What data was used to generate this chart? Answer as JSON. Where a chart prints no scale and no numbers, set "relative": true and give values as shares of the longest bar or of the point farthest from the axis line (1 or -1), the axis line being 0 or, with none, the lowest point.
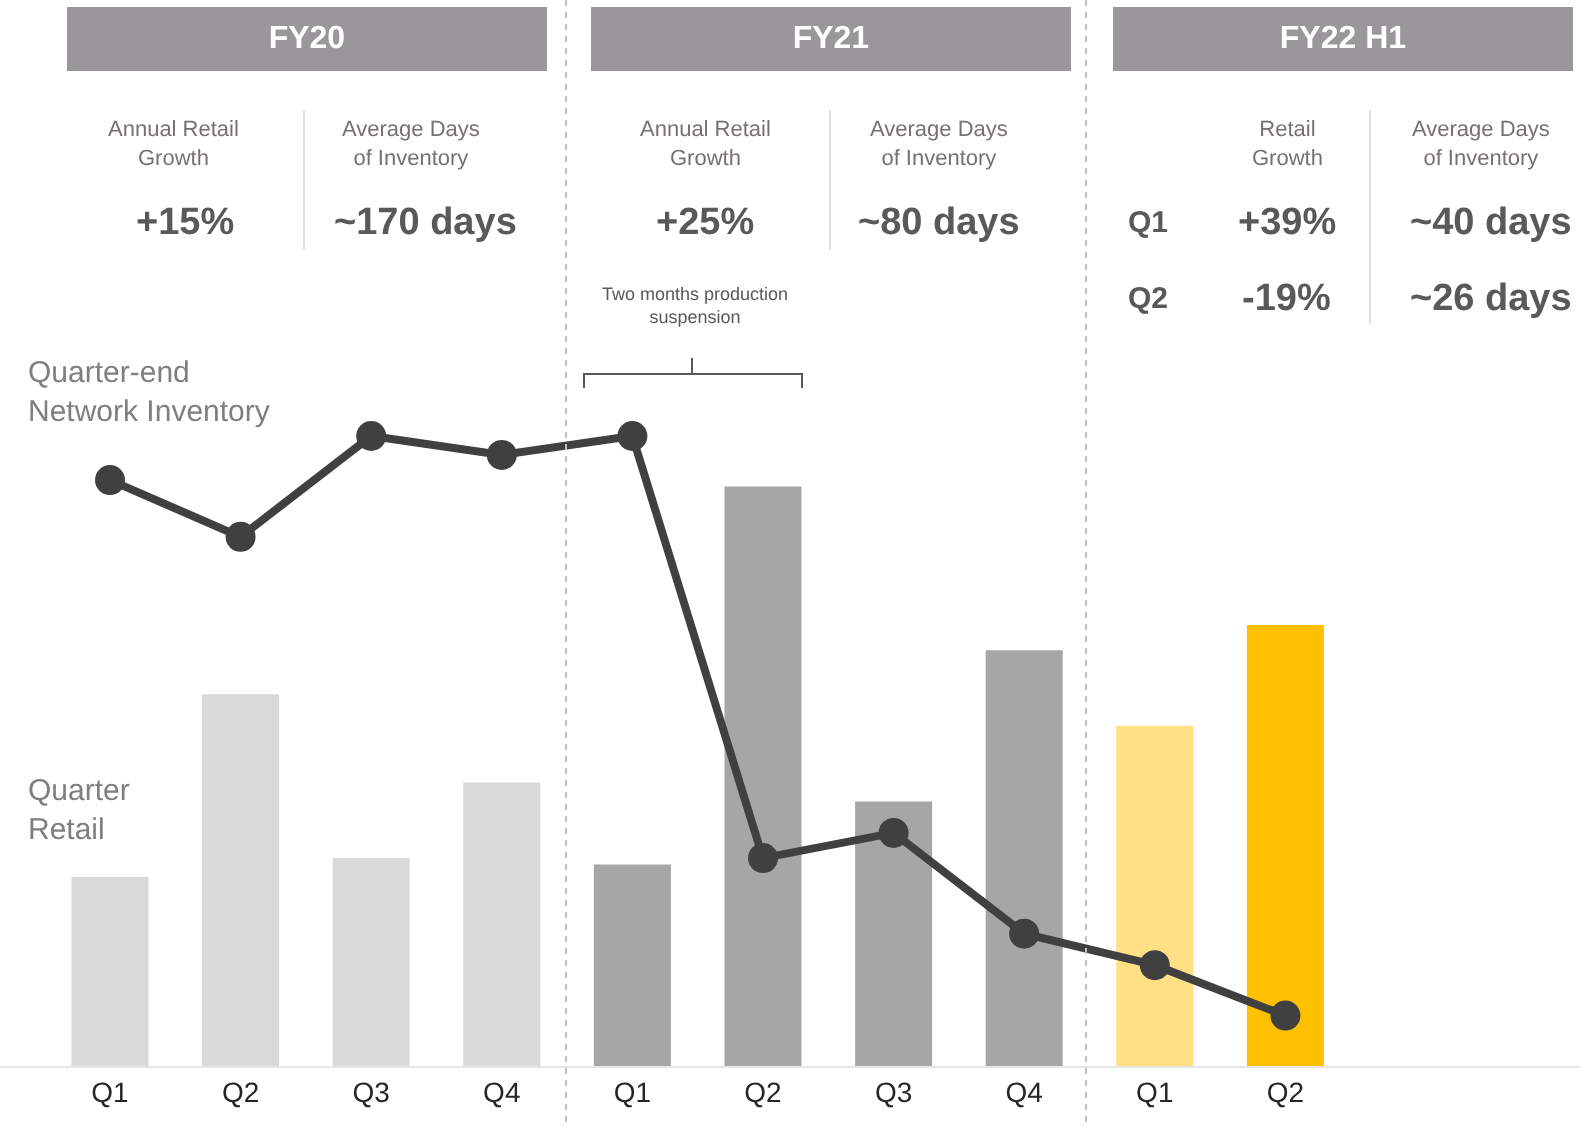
{
  "chart_data": {
    "type": "bar",
    "relative": true,
    "categories": [
      "Q1",
      "Q2",
      "Q3",
      "Q4",
      "Q1",
      "Q2",
      "Q3",
      "Q4",
      "Q1",
      "Q2"
    ],
    "series": [
      {
        "name": "Quarter\nRetail",
        "colors": [
          "#d9d9d9",
          "#d9d9d9",
          "#d9d9d9",
          "#d9d9d9",
          "#a6a6a6",
          "#a6a6a6",
          "#a6a6a6",
          "#a6a6a6",
          "#ffe084",
          "#ffc000"
        ],
        "values": [
          0.3,
          0.59,
          0.33,
          0.45,
          0.32,
          0.92,
          0.42,
          0.66,
          0.54,
          0.7
        ]
      },
      {
        "name": "Quarter-end\nNetwork Inventory",
        "type": "line",
        "color": "#404040",
        "values": [
          0.93,
          0.84,
          1.0,
          0.97,
          1.0,
          0.33,
          0.37,
          0.21,
          0.16,
          0.08
        ]
      }
    ],
    "marker": "circle",
    "line_style": "solid",
    "legend": false,
    "annotations": [
      "FY20",
      "FY21",
      "FY22 H1",
      "Annual Retail\nGrowth",
      "Average Days\nof Inventory",
      "+15%",
      "~170 days",
      "Annual Retail\nGrowth",
      "Average Days\nof Inventory",
      "+25%",
      "~80 days",
      "Retail\nGrowth",
      "Average Days\nof Inventory",
      "Q1",
      "+39%",
      "~40 days",
      "Q2",
      "-19%",
      "~26 days",
      "Two months production\nsuspension"
    ]
  }
}
